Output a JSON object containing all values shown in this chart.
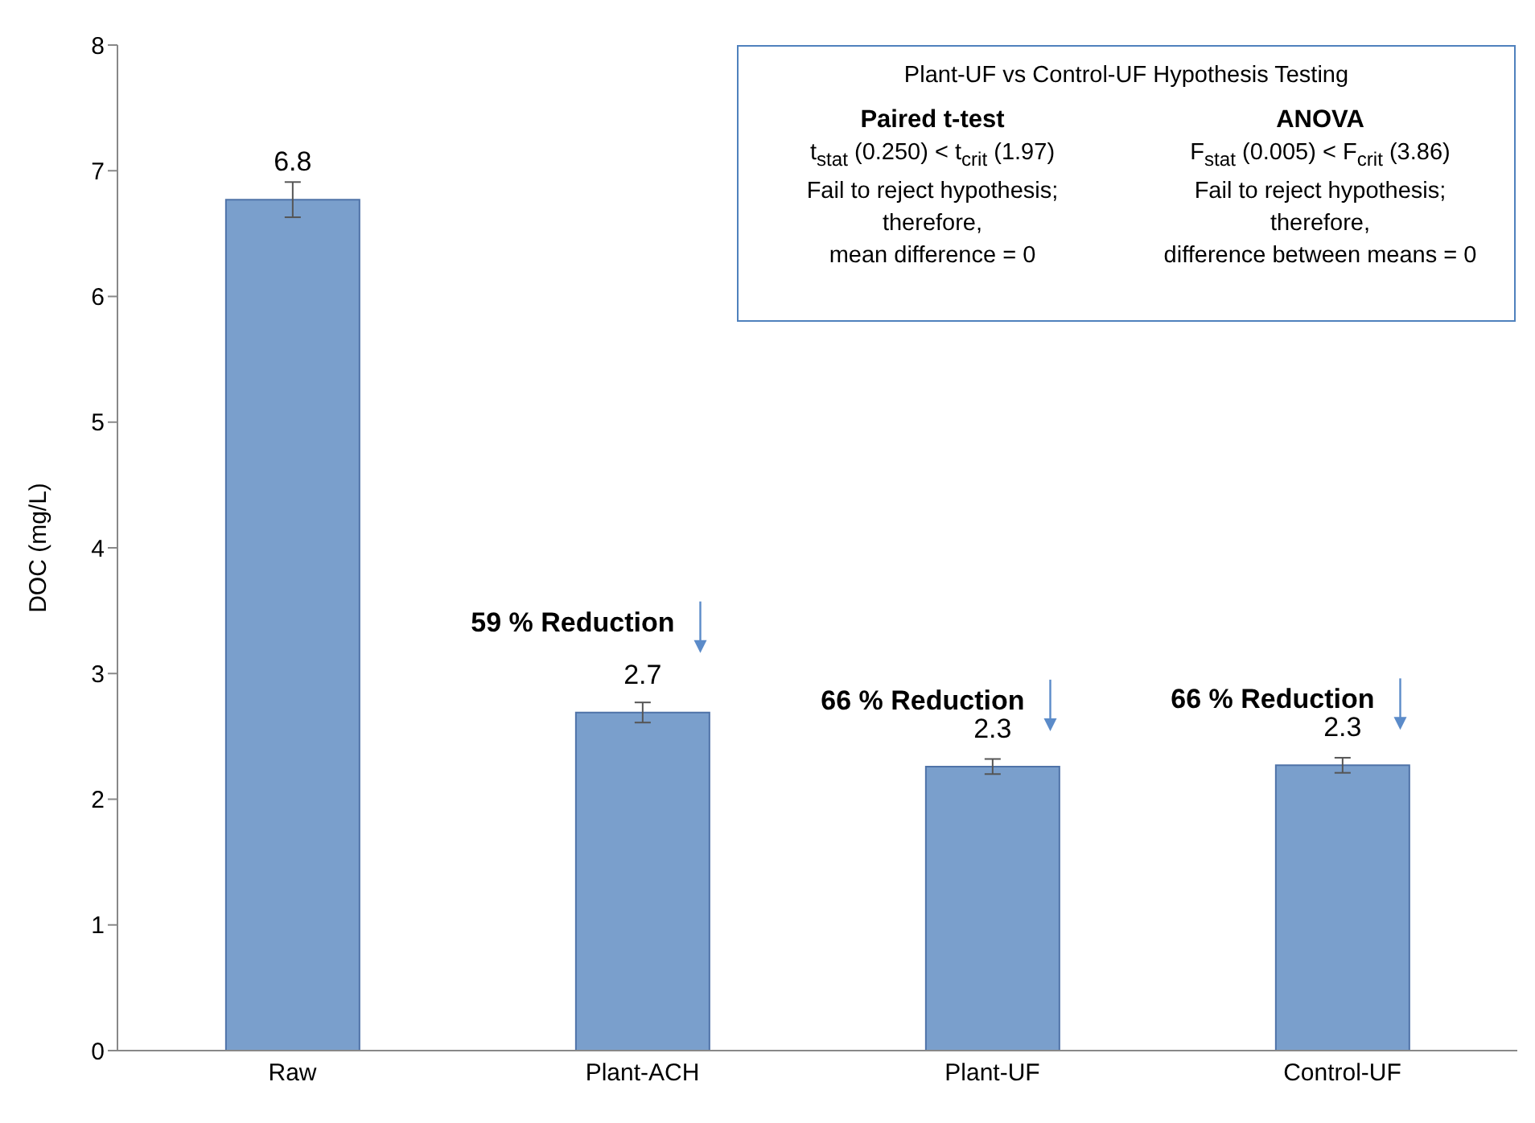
{
  "chart_data": {
    "type": "bar",
    "ylabel": "DOC (mg/L)",
    "categories": [
      "Raw",
      "Plant-ACH",
      "Plant-UF",
      "Control-UF"
    ],
    "values": [
      6.77,
      2.69,
      2.26,
      2.27
    ],
    "color": "#7a9fcc",
    "errors": [
      0.14,
      0.08,
      0.06,
      0.06
    ],
    "value_labels": [
      "6.8",
      "2.7",
      "2.3",
      "2.3"
    ],
    "ylim": [
      0,
      8
    ],
    "yticks": [
      0,
      1,
      2,
      3,
      4,
      5,
      6,
      7,
      8
    ],
    "grid": false,
    "legend": false,
    "annotations": [
      "59 % Reduction",
      "66 % Reduction",
      "66 % Reduction",
      "Plant-UF vs Control-UF Hypothesis Testing",
      "Paired t-test",
      "t$_{stat}$ (0.250) < t$_{crit}$ (1.97)",
      "Fail to reject hypothesis;",
      "therefore,",
      "mean difference = 0",
      "ANOVA",
      "F$_{stat}$ (0.005) < F$_{crit}$ (3.86)",
      "Fail to reject hypothesis;",
      "therefore,",
      "difference between means = 0"
    ]
  }
}
